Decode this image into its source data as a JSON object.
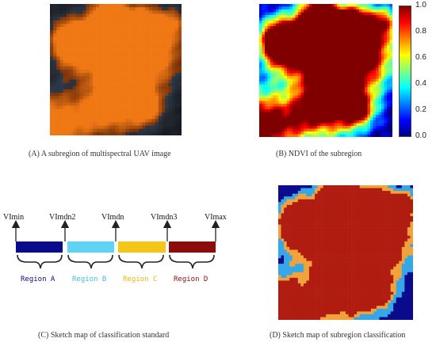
{
  "panels": {
    "a": {
      "caption": "(A) A subregion of multispectral UAV image"
    },
    "b": {
      "caption": "(B) NDVI of the subregion",
      "colorbar": {
        "ticks": [
          "1.0",
          "0.8",
          "0.6",
          "0.4",
          "0.2",
          "0.0"
        ],
        "range": [
          0.0,
          1.0
        ]
      }
    },
    "c": {
      "caption": "(C) Sketch map of classification standard",
      "thresholds": [
        "VImin",
        "VImdn2",
        "VImdn",
        "VImdn3",
        "VImax"
      ],
      "regions": [
        {
          "label": "Region A",
          "color": "#0a0a8c"
        },
        {
          "label": "Region B",
          "color": "#5fd3f3"
        },
        {
          "label": "Region C",
          "color": "#f5c518"
        },
        {
          "label": "Region D",
          "color": "#8e0b0b"
        }
      ]
    },
    "d": {
      "caption": "(D) Sketch map of subregion classification"
    }
  },
  "colors": {
    "jet_low": "#00007f",
    "jet_mid": "#7fff7f",
    "jet_high": "#7f0000",
    "class_a": "#0a0a8c",
    "class_b": "#35a7e8",
    "class_c": "#f2a23a",
    "class_d": "#b01d10"
  }
}
